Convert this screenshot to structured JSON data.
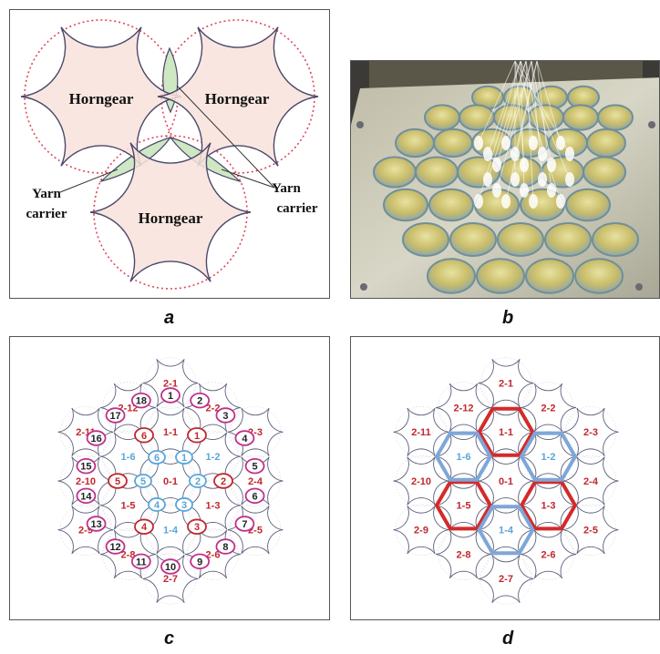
{
  "panel_a": {
    "label": "a",
    "horngear_top_left": "Horngear",
    "horngear_top_right": "Horngear",
    "horngear_bottom": "Horngear",
    "yarn_left_line1": "Yarn",
    "yarn_left_line2": "carrier",
    "yarn_right_line1": "Yarn",
    "yarn_right_line2": "carrier"
  },
  "panel_b": {
    "label": "b"
  },
  "panel_c": {
    "label": "c",
    "cells": [
      {
        "id": "c01",
        "label": "0-1",
        "color": "#c0272d"
      },
      {
        "id": "c11",
        "label": "1-1",
        "color": "#c0272d"
      },
      {
        "id": "c12",
        "label": "1-2",
        "color": "#5aa6d8"
      },
      {
        "id": "c13",
        "label": "1-3",
        "color": "#c0272d"
      },
      {
        "id": "c14",
        "label": "1-4",
        "color": "#5aa6d8"
      },
      {
        "id": "c15",
        "label": "1-5",
        "color": "#c0272d"
      },
      {
        "id": "c16",
        "label": "1-6",
        "color": "#5aa6d8"
      },
      {
        "id": "c21",
        "label": "2-1",
        "color": "#c0272d"
      },
      {
        "id": "c22",
        "label": "2-2",
        "color": "#c0272d"
      },
      {
        "id": "c23",
        "label": "2-3",
        "color": "#c0272d"
      },
      {
        "id": "c24",
        "label": "2-4",
        "color": "#c0272d"
      },
      {
        "id": "c25",
        "label": "2-5",
        "color": "#c0272d"
      },
      {
        "id": "c26",
        "label": "2-6",
        "color": "#c0272d"
      },
      {
        "id": "c27",
        "label": "2-7",
        "color": "#c0272d"
      },
      {
        "id": "c28",
        "label": "2-8",
        "color": "#c0272d"
      },
      {
        "id": "c29",
        "label": "2-9",
        "color": "#c0272d"
      },
      {
        "id": "c210",
        "label": "2-10",
        "color": "#c0272d"
      },
      {
        "id": "c211",
        "label": "2-11",
        "color": "#c0272d"
      },
      {
        "id": "c212",
        "label": "2-12",
        "color": "#c0272d"
      }
    ],
    "inner_blue_carriers": [
      "1",
      "2",
      "3",
      "4",
      "5",
      "6"
    ],
    "red_carriers": [
      "1",
      "2",
      "3",
      "4",
      "5",
      "6"
    ],
    "outer_carriers": [
      "1",
      "2",
      "3",
      "4",
      "5",
      "6",
      "7",
      "8",
      "9",
      "10",
      "11",
      "12",
      "13",
      "14",
      "15",
      "16",
      "17",
      "18"
    ]
  },
  "panel_d": {
    "label": "d",
    "cells": [
      {
        "id": "c01",
        "label": "0-1",
        "color": "#c0272d"
      },
      {
        "id": "c11",
        "label": "1-1",
        "color": "#c0272d"
      },
      {
        "id": "c12",
        "label": "1-2",
        "color": "#5aa6d8"
      },
      {
        "id": "c13",
        "label": "1-3",
        "color": "#c0272d"
      },
      {
        "id": "c14",
        "label": "1-4",
        "color": "#5aa6d8"
      },
      {
        "id": "c15",
        "label": "1-5",
        "color": "#c0272d"
      },
      {
        "id": "c16",
        "label": "1-6",
        "color": "#5aa6d8"
      },
      {
        "id": "c21",
        "label": "2-1",
        "color": "#c0272d"
      },
      {
        "id": "c22",
        "label": "2-2",
        "color": "#c0272d"
      },
      {
        "id": "c23",
        "label": "2-3",
        "color": "#c0272d"
      },
      {
        "id": "c24",
        "label": "2-4",
        "color": "#c0272d"
      },
      {
        "id": "c25",
        "label": "2-5",
        "color": "#c0272d"
      },
      {
        "id": "c26",
        "label": "2-6",
        "color": "#c0272d"
      },
      {
        "id": "c27",
        "label": "2-7",
        "color": "#c0272d"
      },
      {
        "id": "c28",
        "label": "2-8",
        "color": "#c0272d"
      },
      {
        "id": "c29",
        "label": "2-9",
        "color": "#c0272d"
      },
      {
        "id": "c210",
        "label": "2-10",
        "color": "#c0272d"
      },
      {
        "id": "c211",
        "label": "2-11",
        "color": "#c0272d"
      },
      {
        "id": "c212",
        "label": "2-12",
        "color": "#c0272d"
      }
    ]
  },
  "colors": {
    "gear_outline": "#4a4a6a",
    "dotted_circle": "#e0455a",
    "horngear_fill": "#f9e2dc",
    "carrier_fill": "#cfe8c4",
    "red": "#c0272d",
    "blue": "#5aa6d8",
    "magenta": "#c0308c",
    "highlight_red": "#d42a2a",
    "highlight_blue": "#7ea6d8"
  }
}
